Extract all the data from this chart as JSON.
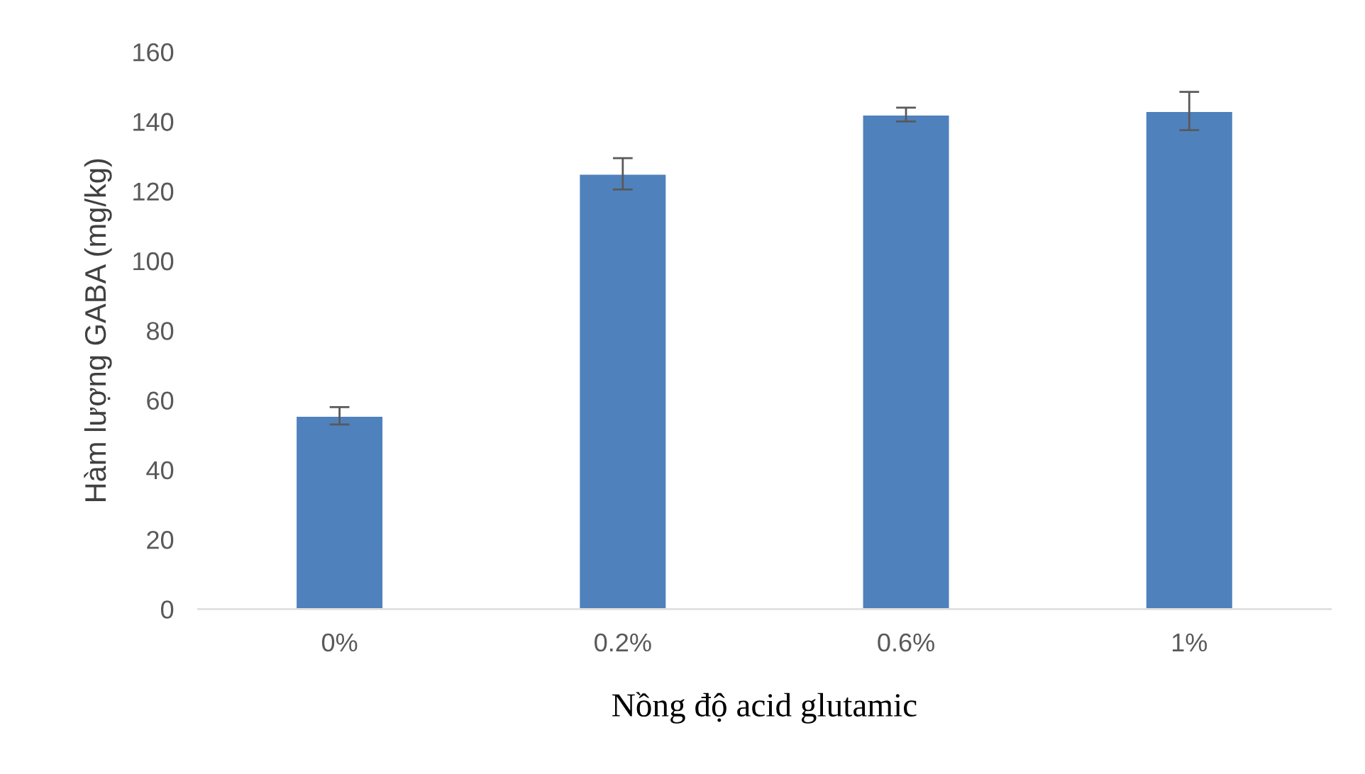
{
  "chart_data": {
    "type": "bar",
    "xlabel": "Nồng độ acid glutamic",
    "ylabel": "Hàm lượng GABA (mg/kg)",
    "categories": [
      "0%",
      "0.2%",
      "0.6%",
      "1%"
    ],
    "series": [
      {
        "color": "#4f81bd",
        "values": [
          55.5,
          125,
          142,
          143
        ],
        "errors": [
          2.5,
          4.5,
          2,
          5.5
        ]
      }
    ],
    "ylim": [
      0,
      160
    ],
    "yticks": [
      0,
      20,
      40,
      60,
      80,
      100,
      120,
      140,
      160
    ],
    "grid": false,
    "legend": false
  }
}
